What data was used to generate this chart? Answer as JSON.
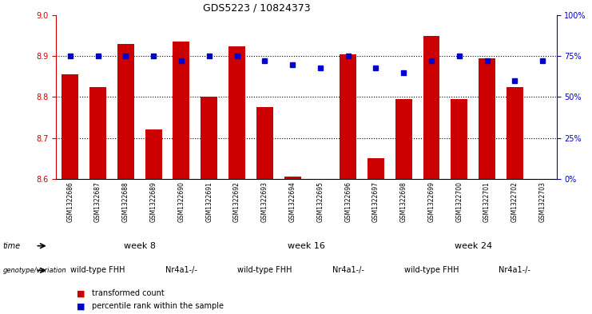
{
  "title": "GDS5223 / 10824373",
  "samples": [
    "GSM1322686",
    "GSM1322687",
    "GSM1322688",
    "GSM1322689",
    "GSM1322690",
    "GSM1322691",
    "GSM1322692",
    "GSM1322693",
    "GSM1322694",
    "GSM1322695",
    "GSM1322696",
    "GSM1322697",
    "GSM1322698",
    "GSM1322699",
    "GSM1322700",
    "GSM1322701",
    "GSM1322702",
    "GSM1322703"
  ],
  "transformed_count": [
    8.855,
    8.825,
    8.93,
    8.72,
    8.935,
    8.8,
    8.925,
    8.775,
    8.605,
    8.6,
    8.905,
    8.65,
    8.795,
    8.95,
    8.795,
    8.895,
    8.825,
    8.6
  ],
  "percentile_rank": [
    75,
    75,
    75,
    75,
    72,
    75,
    75,
    72,
    70,
    68,
    75,
    68,
    65,
    72,
    75,
    72,
    60,
    72
  ],
  "ylim_left": [
    8.6,
    9.0
  ],
  "ylim_right": [
    0,
    100
  ],
  "yticks_left": [
    8.6,
    8.7,
    8.8,
    8.9,
    9.0
  ],
  "yticks_right": [
    0,
    25,
    50,
    75,
    100
  ],
  "bar_color": "#cc0000",
  "dot_color": "#0000cc",
  "bar_base": 8.6,
  "time_groups": [
    {
      "label": "week 8",
      "start": 0,
      "end": 5,
      "color": "#ccffcc"
    },
    {
      "label": "week 16",
      "start": 6,
      "end": 11,
      "color": "#55dd55"
    },
    {
      "label": "week 24",
      "start": 12,
      "end": 17,
      "color": "#33cc33"
    }
  ],
  "genotype_groups": [
    {
      "label": "wild-type FHH",
      "start": 0,
      "end": 2,
      "color": "#ee99ee"
    },
    {
      "label": "Nr4a1-/-",
      "start": 3,
      "end": 5,
      "color": "#cc44cc"
    },
    {
      "label": "wild-type FHH",
      "start": 6,
      "end": 8,
      "color": "#ee99ee"
    },
    {
      "label": "Nr4a1-/-",
      "start": 9,
      "end": 11,
      "color": "#cc44cc"
    },
    {
      "label": "wild-type FHH",
      "start": 12,
      "end": 14,
      "color": "#ee99ee"
    },
    {
      "label": "Nr4a1-/-",
      "start": 15,
      "end": 17,
      "color": "#cc44cc"
    }
  ],
  "bar_color_label": "transformed count",
  "dot_color_label": "percentile rank within the sample",
  "left_axis_color": "#cc0000",
  "right_axis_color": "#0000cc",
  "xtick_bg_color": "#cccccc",
  "title_fontsize": 9
}
